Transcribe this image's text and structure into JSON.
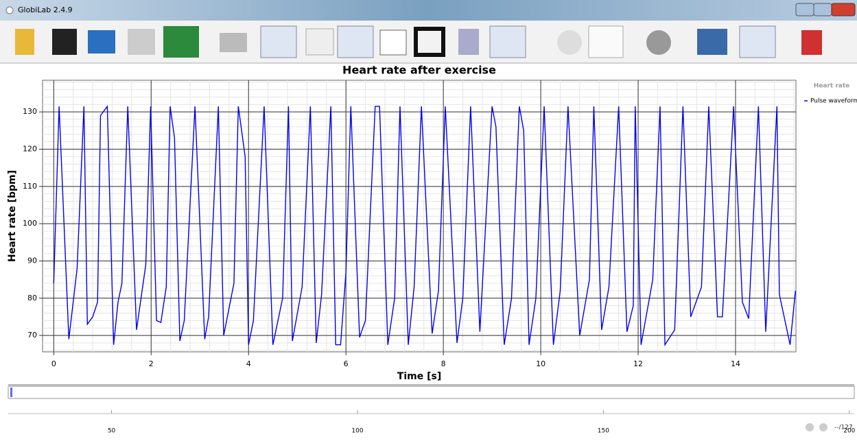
{
  "window": {
    "title": "GlobiLab 2.4.9"
  },
  "chart_data": {
    "type": "line",
    "title": "Heart rate after exercise",
    "x_label": "Time [s]",
    "y_label": "Heart rate [bpm]",
    "legend_title": "Heart rate",
    "x": [
      0,
      0.11,
      0.31,
      0.48,
      0.62,
      0.69,
      0.8,
      0.9,
      0.96,
      1.1,
      1.23,
      1.32,
      1.4,
      1.52,
      1.7,
      1.89,
      1.99,
      2.11,
      2.2,
      2.31,
      2.39,
      2.48,
      2.59,
      2.68,
      2.9,
      3.1,
      3.18,
      3.38,
      3.49,
      3.7,
      3.79,
      3.93,
      4.0,
      4.1,
      4.32,
      4.5,
      4.7,
      4.82,
      4.9,
      5.1,
      5.27,
      5.39,
      5.5,
      5.69,
      5.79,
      5.89,
      6.0,
      6.1,
      6.28,
      6.4,
      6.6,
      6.69,
      6.86,
      7.0,
      7.11,
      7.28,
      7.4,
      7.55,
      7.77,
      7.9,
      8.04,
      8.28,
      8.4,
      8.56,
      8.75,
      9.0,
      9.08,
      9.25,
      9.4,
      9.56,
      9.65,
      9.76,
      9.9,
      10.07,
      10.26,
      10.4,
      10.56,
      10.8,
      11.0,
      11.09,
      11.25,
      11.4,
      11.6,
      11.77,
      11.9,
      11.94,
      12.06,
      12.3,
      12.45,
      12.55,
      12.75,
      12.92,
      13.08,
      13.3,
      13.45,
      13.63,
      13.73,
      13.96,
      14.14,
      14.27,
      14.47,
      14.62,
      14.85,
      14.9,
      15.12,
      15.23
    ],
    "series": [
      {
        "name": "Pulse waveform",
        "color": "#0000ee",
        "values": [
          84,
          131.5,
          69,
          88,
          131.5,
          73,
          75,
          79,
          129,
          131.5,
          67.5,
          79,
          84,
          131.5,
          71.5,
          89,
          131.5,
          74,
          73.5,
          83,
          131.5,
          123,
          68.5,
          74,
          131.5,
          69,
          75,
          131.5,
          70,
          84,
          131.5,
          118,
          67.5,
          74,
          131.5,
          67.5,
          80,
          131.5,
          68.5,
          83,
          131.5,
          68,
          81,
          131.5,
          67.5,
          67.5,
          87,
          131.5,
          69.5,
          74,
          131.5,
          131.5,
          67.5,
          80,
          131.5,
          67.5,
          83,
          131.5,
          70.5,
          82,
          131.5,
          68,
          80,
          131.5,
          71,
          131.5,
          126,
          67.5,
          80,
          131.5,
          125,
          67.5,
          80,
          131.5,
          67.5,
          82,
          131.5,
          70,
          85,
          131.5,
          71.5,
          83,
          131.5,
          71,
          78,
          131.5,
          67.5,
          85,
          131.5,
          67.5,
          71.5,
          131.5,
          75,
          83,
          131.5,
          75,
          75,
          131.5,
          79,
          74.5,
          131.5,
          71,
          131.5,
          81,
          67.5,
          82
        ]
      }
    ],
    "xlim": [
      -0.23,
      15.24
    ],
    "ylim": [
      65.6,
      138.5
    ],
    "xticks": [
      0,
      2,
      4,
      6,
      8,
      10,
      12,
      14
    ],
    "yticks": [
      70,
      80,
      90,
      100,
      110,
      120,
      130
    ],
    "grid": true
  },
  "slider": {
    "xlim": [
      29,
      201
    ],
    "ticks": [
      50,
      100,
      150,
      200
    ],
    "page_label": "--/127"
  }
}
